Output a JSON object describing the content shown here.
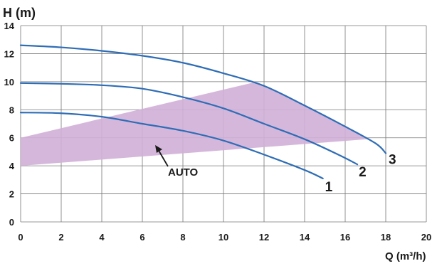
{
  "chart_data": {
    "type": "line",
    "title": "",
    "ylabel": "H (m)",
    "xlabel": "Q (m³/h)",
    "xlim": [
      0,
      20
    ],
    "ylim": [
      0,
      14
    ],
    "x_ticks": [
      0,
      2,
      4,
      6,
      8,
      10,
      12,
      14,
      16,
      18,
      20
    ],
    "y_ticks": [
      0,
      2,
      4,
      6,
      8,
      10,
      12,
      14
    ],
    "grid": true,
    "series": [
      {
        "name": "1",
        "color": "#2f6db5",
        "points": [
          [
            0,
            7.8
          ],
          [
            2,
            7.75
          ],
          [
            4,
            7.5
          ],
          [
            6,
            7.0
          ],
          [
            8,
            6.5
          ],
          [
            10,
            5.8
          ],
          [
            12,
            4.8
          ],
          [
            14,
            3.7
          ],
          [
            14.9,
            3.1
          ]
        ]
      },
      {
        "name": "2",
        "color": "#2f6db5",
        "points": [
          [
            0,
            9.9
          ],
          [
            2,
            9.85
          ],
          [
            4,
            9.75
          ],
          [
            6,
            9.5
          ],
          [
            8,
            8.9
          ],
          [
            10,
            8.1
          ],
          [
            12,
            7.0
          ],
          [
            14,
            5.9
          ],
          [
            15.8,
            4.7
          ],
          [
            16.6,
            4.1
          ]
        ]
      },
      {
        "name": "3",
        "color": "#2f6db5",
        "points": [
          [
            0,
            12.6
          ],
          [
            2,
            12.45
          ],
          [
            4,
            12.2
          ],
          [
            6,
            11.85
          ],
          [
            8,
            11.35
          ],
          [
            10,
            10.6
          ],
          [
            12,
            9.7
          ],
          [
            14,
            8.3
          ],
          [
            16,
            6.8
          ],
          [
            17.5,
            5.6
          ],
          [
            18,
            4.9
          ]
        ]
      }
    ],
    "auto_region": {
      "label": "AUTO",
      "color": "#d1afd8",
      "polygon": [
        [
          0,
          4.0
        ],
        [
          0,
          6.0
        ],
        [
          11.5,
          9.95
        ],
        [
          12,
          9.7
        ],
        [
          14,
          8.3
        ],
        [
          16,
          6.8
        ],
        [
          17.1,
          5.9
        ]
      ]
    }
  }
}
